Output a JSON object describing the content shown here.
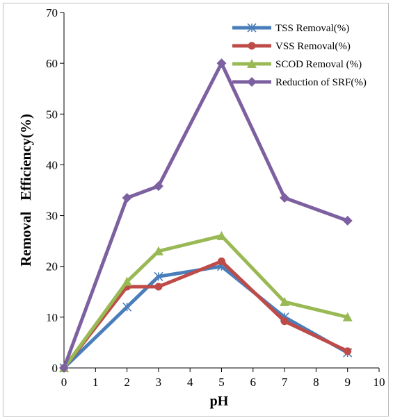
{
  "chart_data": {
    "type": "line",
    "xlabel": "pH",
    "ylabel": "Removal   Efficiency(%)",
    "xlim": [
      0,
      10
    ],
    "ylim": [
      0,
      70
    ],
    "x_ticks": [
      0,
      1,
      2,
      3,
      4,
      5,
      6,
      7,
      8,
      9,
      10
    ],
    "y_ticks": [
      0,
      10,
      20,
      30,
      40,
      50,
      60,
      70
    ],
    "grid": false,
    "legend_position": "top-right",
    "x": [
      0,
      2,
      3,
      5,
      7,
      9
    ],
    "series": [
      {
        "name": "TSS Removal(%)",
        "color": "#4a7ebb",
        "marker": "x",
        "values": [
          0,
          12,
          18,
          20,
          10,
          3
        ]
      },
      {
        "name": "VSS Removal(%)",
        "color": "#be4b48",
        "marker": "circle",
        "values": [
          0,
          16,
          16,
          21,
          9.2,
          3.3
        ]
      },
      {
        "name": "SCOD Removal (%)",
        "color": "#98b954",
        "marker": "triangle",
        "values": [
          0,
          17,
          23,
          26,
          13,
          10
        ]
      },
      {
        "name": "Reduction of SRF(%)",
        "color": "#7d60a0",
        "marker": "diamond",
        "values": [
          0,
          33.5,
          35.8,
          60,
          33.5,
          29
        ]
      }
    ]
  }
}
